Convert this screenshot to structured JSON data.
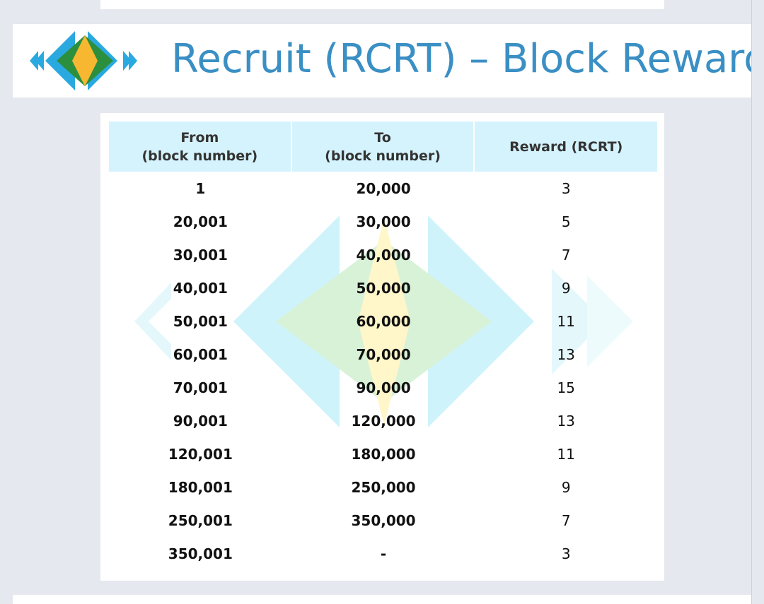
{
  "banner": {
    "title": "Recruit (RCRT) – Block Reward",
    "logo_icon": "recruit-diamond-logo",
    "title_color": "#3a8fc4"
  },
  "table": {
    "headers": {
      "from_line1": "From",
      "from_line2": "(block number)",
      "to_line1": "To",
      "to_line2": "(block number)",
      "reward": "Reward (RCRT)"
    },
    "header_color": "#d5f3fc",
    "rows": [
      {
        "from": "1",
        "to": "20,000",
        "reward": "3"
      },
      {
        "from": "20,001",
        "to": "30,000",
        "reward": "5"
      },
      {
        "from": "30,001",
        "to": "40,000",
        "reward": "7"
      },
      {
        "from": "40,001",
        "to": "50,000",
        "reward": "9"
      },
      {
        "from": "50,001",
        "to": "60,000",
        "reward": "11"
      },
      {
        "from": "60,001",
        "to": "70,000",
        "reward": "13"
      },
      {
        "from": "70,001",
        "to": "90,000",
        "reward": "15"
      },
      {
        "from": "90,001",
        "to": "120,000",
        "reward": "13"
      },
      {
        "from": "120,001",
        "to": "180,000",
        "reward": "11"
      },
      {
        "from": "180,001",
        "to": "250,000",
        "reward": "9"
      },
      {
        "from": "250,001",
        "to": "350,000",
        "reward": "7"
      },
      {
        "from": "350,001",
        "to": "-",
        "reward": "3"
      }
    ]
  }
}
